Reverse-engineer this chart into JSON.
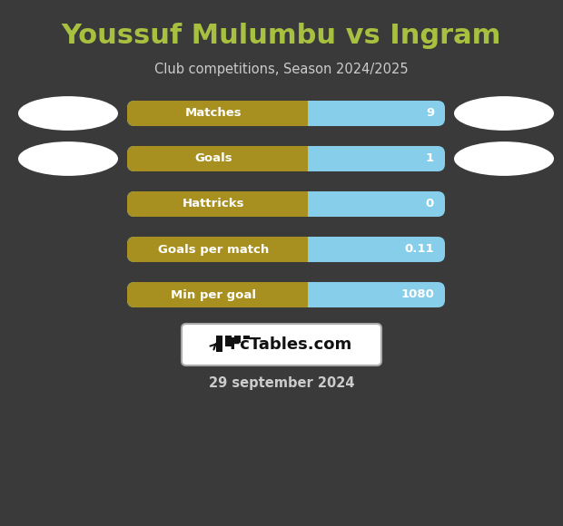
{
  "title": "Youssuf Mulumbu vs Ingram",
  "subtitle": "Club competitions, Season 2024/2025",
  "date": "29 september 2024",
  "background_color": "#3a3a3a",
  "title_color": "#a8c040",
  "subtitle_color": "#cccccc",
  "date_color": "#cccccc",
  "rows": [
    {
      "label": "Matches",
      "value": "9"
    },
    {
      "label": "Goals",
      "value": "1"
    },
    {
      "label": "Hattricks",
      "value": "0"
    },
    {
      "label": "Goals per match",
      "value": "0.11"
    },
    {
      "label": "Min per goal",
      "value": "1080"
    }
  ],
  "bar_left_color": "#a89020",
  "bar_right_color": "#87ceeb",
  "bar_text_color": "#ffffff",
  "ellipse_color": "#ffffff",
  "logo_box_color": "#ffffff",
  "logo_box_edge_color": "#aaaaaa",
  "logo_text_color": "#111111"
}
